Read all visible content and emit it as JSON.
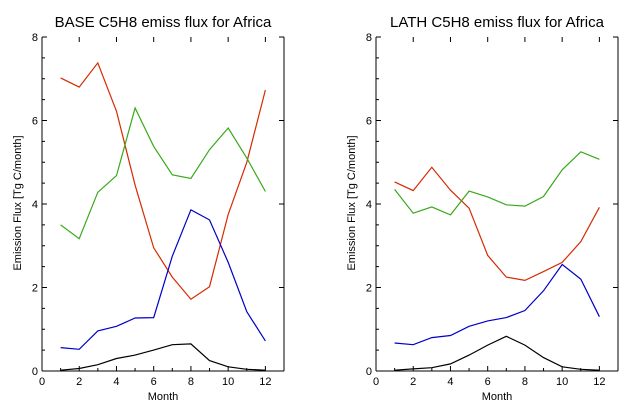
{
  "chart_data": [
    {
      "type": "line",
      "title": "BASE C5H8 emiss flux for Africa",
      "xlabel": "Month",
      "ylabel": "Emission Flux [Tg C/month]",
      "xlim": [
        0,
        13
      ],
      "ylim": [
        0,
        8
      ],
      "xticks": [
        0,
        2,
        4,
        6,
        8,
        10,
        12
      ],
      "yticks": [
        0,
        2,
        4,
        6,
        8
      ],
      "x": [
        1,
        2,
        3,
        4,
        5,
        6,
        7,
        8,
        9,
        10,
        11,
        12
      ],
      "grid": false,
      "series": [
        {
          "color": "#d62a00",
          "values": [
            7.02,
            6.8,
            7.38,
            6.22,
            4.45,
            2.95,
            2.25,
            1.72,
            2.02,
            3.75,
            5.0,
            6.73
          ]
        },
        {
          "color": "#3aa81b",
          "values": [
            3.5,
            3.17,
            4.28,
            4.68,
            6.3,
            5.38,
            4.7,
            4.61,
            5.3,
            5.82,
            5.1,
            4.3
          ]
        },
        {
          "color": "#0000c8",
          "values": [
            0.56,
            0.52,
            0.96,
            1.07,
            1.27,
            1.28,
            2.75,
            3.86,
            3.62,
            2.6,
            1.42,
            0.72
          ]
        },
        {
          "color": "#000000",
          "values": [
            0.02,
            0.06,
            0.15,
            0.3,
            0.38,
            0.5,
            0.63,
            0.65,
            0.25,
            0.1,
            0.04,
            0.02
          ]
        }
      ]
    },
    {
      "type": "line",
      "title": "LATH C5H8 emiss flux for Africa",
      "xlabel": "Month",
      "ylabel": "Emission Flux [Tg C/month]",
      "xlim": [
        0,
        13
      ],
      "ylim": [
        0,
        8
      ],
      "xticks": [
        0,
        2,
        4,
        6,
        8,
        10,
        12
      ],
      "yticks": [
        0,
        2,
        4,
        6,
        8
      ],
      "x": [
        1,
        2,
        3,
        4,
        5,
        6,
        7,
        8,
        9,
        10,
        11,
        12
      ],
      "grid": false,
      "series": [
        {
          "color": "#d62a00",
          "values": [
            4.53,
            4.32,
            4.88,
            4.33,
            3.9,
            2.77,
            2.25,
            2.17,
            2.38,
            2.6,
            3.1,
            3.92
          ]
        },
        {
          "color": "#3aa81b",
          "values": [
            4.35,
            3.78,
            3.93,
            3.74,
            4.31,
            4.17,
            3.98,
            3.95,
            4.18,
            4.82,
            5.25,
            5.07
          ]
        },
        {
          "color": "#0000c8",
          "values": [
            0.67,
            0.63,
            0.8,
            0.85,
            1.07,
            1.2,
            1.28,
            1.45,
            1.92,
            2.55,
            2.2,
            1.3
          ]
        },
        {
          "color": "#000000",
          "values": [
            0.02,
            0.05,
            0.08,
            0.17,
            0.38,
            0.62,
            0.83,
            0.62,
            0.32,
            0.1,
            0.04,
            0.02
          ]
        }
      ]
    }
  ]
}
